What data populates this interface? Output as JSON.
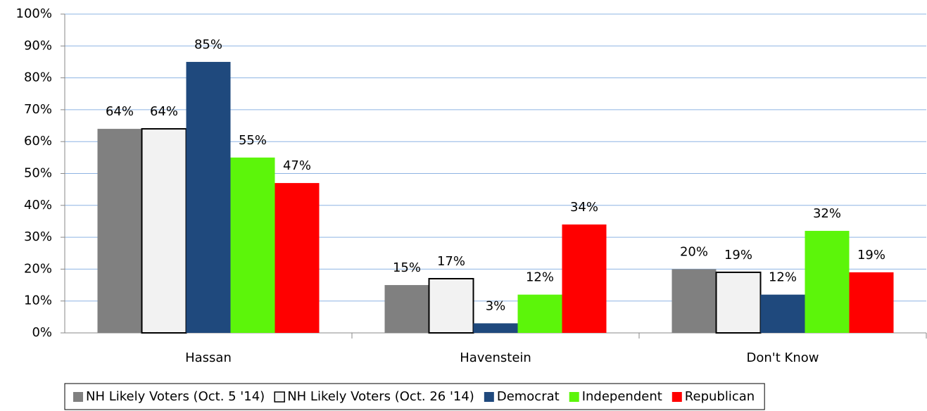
{
  "chart_data": {
    "type": "bar",
    "categories": [
      "Hassan",
      "Havenstein",
      "Don't Know"
    ],
    "series": [
      {
        "name": "NH Likely Voters (Oct. 5 '14)",
        "color": "#808080",
        "values": [
          64,
          15,
          20
        ],
        "value_labels": [
          "64%",
          "15%",
          "20%"
        ]
      },
      {
        "name": "NH Likely Voters (Oct. 26 '14)",
        "color": "#f2f2f2",
        "edgecolor": "#000000",
        "values": [
          64,
          17,
          19
        ],
        "value_labels": [
          "64%",
          "17%",
          "19%"
        ]
      },
      {
        "name": "Democrat",
        "color": "#1f497d",
        "values": [
          85,
          3,
          12
        ],
        "value_labels": [
          "85%",
          "3%",
          "12%"
        ]
      },
      {
        "name": "Independent",
        "color": "#5cf50a",
        "values": [
          55,
          12,
          32
        ],
        "value_labels": [
          "55%",
          "12%",
          "32%"
        ]
      },
      {
        "name": "Republican",
        "color": "#ff0000",
        "values": [
          47,
          34,
          19
        ],
        "value_labels": [
          "47%",
          "34%",
          "19%"
        ]
      }
    ],
    "ylim": [
      0,
      100
    ],
    "yticks": [
      {
        "value": 0,
        "label": "0%"
      },
      {
        "value": 10,
        "label": "10%"
      },
      {
        "value": 20,
        "label": "20%"
      },
      {
        "value": 30,
        "label": "30%"
      },
      {
        "value": 40,
        "label": "40%"
      },
      {
        "value": 50,
        "label": "50%"
      },
      {
        "value": 60,
        "label": "60%"
      },
      {
        "value": 70,
        "label": "70%"
      },
      {
        "value": 80,
        "label": "80%"
      },
      {
        "value": 90,
        "label": "90%"
      },
      {
        "value": 100,
        "label": "100%"
      }
    ],
    "grid": true,
    "legend": "bottom"
  }
}
